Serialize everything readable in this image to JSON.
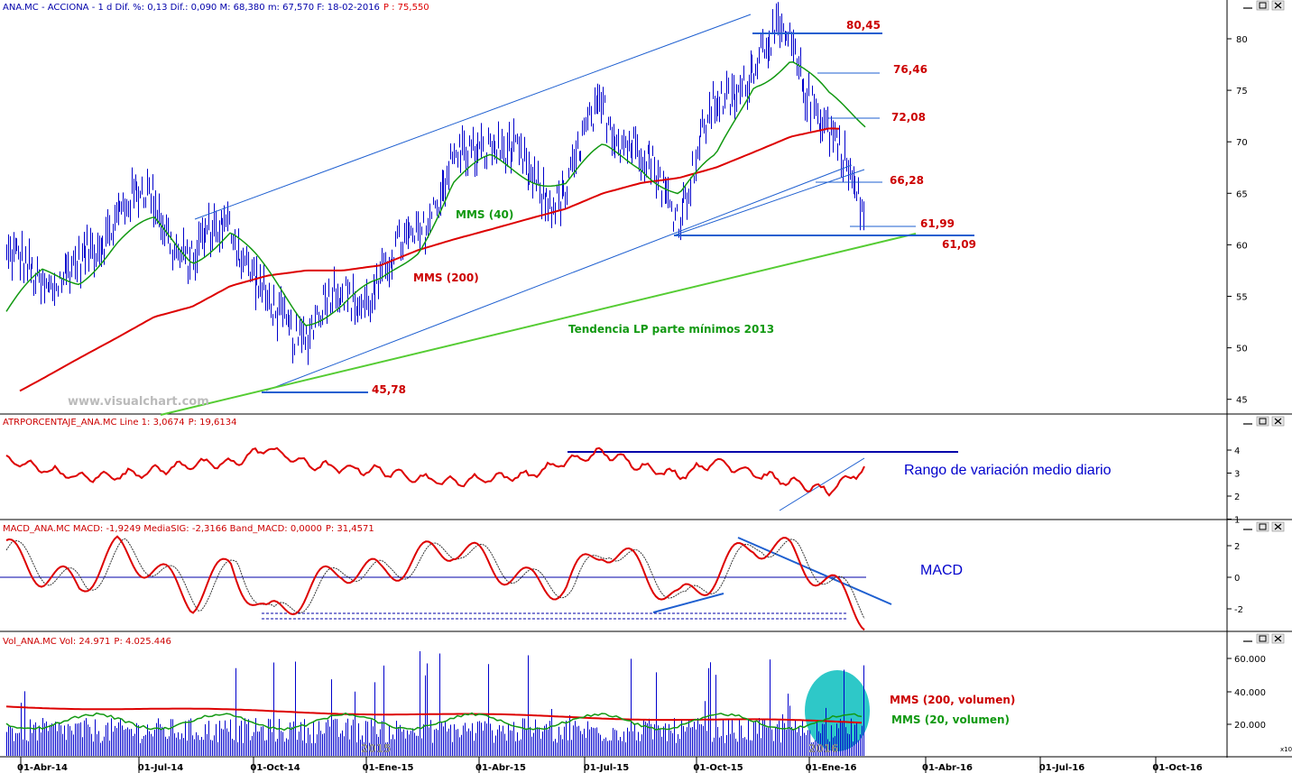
{
  "price_panel": {
    "title_prefix": "ANA.MC - ACCIONA - 1 d Dif. %: 0,13 Dif.: 0,090 M: 68,380 m: 67,570 F: 18-02-2016",
    "title_p": "P : 75,550",
    "watermark": "www.visualchart.com",
    "yticks": [
      "80",
      "75",
      "70",
      "65",
      "60",
      "55",
      "50",
      "45"
    ],
    "labels": {
      "high": "80,45",
      "r1": "76,46",
      "r2": "72,08",
      "s1": "66,28",
      "s2": "61,99",
      "s3": "61,09",
      "low": "45,78",
      "mms40": "MMS (40)",
      "mms200": "MMS (200)",
      "trend": "Tendencia LP parte mínimos 2013"
    }
  },
  "atr_panel": {
    "title_prefix": "ATRPORCENTAJE_ANA.MC Line 1: 3,0674",
    "title_p": "P: 19,6134",
    "yticks": [
      "4",
      "3",
      "2",
      "1"
    ],
    "annotation": "Rango de variación medio diario"
  },
  "macd_panel": {
    "title_prefix": "MACD_ANA.MC MACD: -1,9249 MediaSIG: -2,3166 Band_MACD: 0,0000",
    "title_p": "P: 31,4571",
    "yticks": [
      "2",
      "0",
      "-2"
    ],
    "annotation": "MACD"
  },
  "vol_panel": {
    "title_prefix": "Vol_ANA.MC Vol: 24.971",
    "title_p": "P: 4.025.446",
    "yticks": [
      "60.000",
      "40.000",
      "20.000"
    ],
    "scale_note": "x10",
    "year_labels": [
      "2015",
      "2016"
    ],
    "legend_200": "MMS (200, volumen)",
    "legend_20": "MMS (20, volumen)"
  },
  "x_axis": [
    "01-Abr-14",
    "01-Jul-14",
    "01-Oct-14",
    "01-Ene-15",
    "01-Abr-15",
    "01-Jul-15",
    "01-Oct-15",
    "01-Ene-16",
    "01-Abr-16",
    "01-Jul-16",
    "01-Oct-16"
  ],
  "colors": {
    "price_bars": "#0000cc",
    "mms200": "#dd0000",
    "mms40": "#129912",
    "channel": "#1e5fd0",
    "trend": "#55cc33",
    "level_label": "#cc0000",
    "atr": "#dd0000",
    "macd": "#dd0000",
    "vol_bars": "#0000cc",
    "vol_ma200": "#dd0000",
    "vol_ma20": "#129912",
    "highlight": "#2ec8c8"
  },
  "chart_data": {
    "type": "line",
    "dates": [
      "2014-03-01",
      "2014-04-01",
      "2014-05-01",
      "2014-06-01",
      "2014-07-01",
      "2014-08-01",
      "2014-09-01",
      "2014-10-01",
      "2014-11-01",
      "2014-12-01",
      "2015-01-01",
      "2015-02-01",
      "2015-03-01",
      "2015-04-01",
      "2015-05-01",
      "2015-06-01",
      "2015-07-01",
      "2015-08-01",
      "2015-09-01",
      "2015-10-01",
      "2015-11-01",
      "2015-12-01",
      "2016-01-01",
      "2016-02-01"
    ],
    "series": [
      {
        "name": "ANA.MC",
        "values": [
          58,
          57,
          57,
          64,
          64,
          58,
          63,
          53,
          52,
          55,
          56,
          62,
          67,
          71,
          66,
          65,
          74,
          68,
          64,
          73,
          78,
          80,
          70,
          64
        ]
      },
      {
        "name": "MMS (40)",
        "values": [
          53,
          57,
          57,
          60,
          62,
          59,
          61,
          57,
          53,
          54,
          56,
          60,
          66,
          68,
          67,
          66,
          69,
          68,
          65,
          68,
          76,
          78,
          74,
          72
        ]
      },
      {
        "name": "MMS (200)",
        "values": [
          45,
          47,
          49,
          51,
          53,
          54,
          56,
          57,
          57.5,
          57.5,
          58,
          59.5,
          60.5,
          61.5,
          62.5,
          63.5,
          65,
          66,
          66.5,
          67.5,
          69,
          70.5,
          71.3,
          71.2
        ]
      }
    ],
    "ylim": [
      44,
      82
    ],
    "annotations": [
      "80,45",
      "76,46",
      "72,08",
      "66,28",
      "61,99",
      "61,09",
      "45,78"
    ]
  }
}
